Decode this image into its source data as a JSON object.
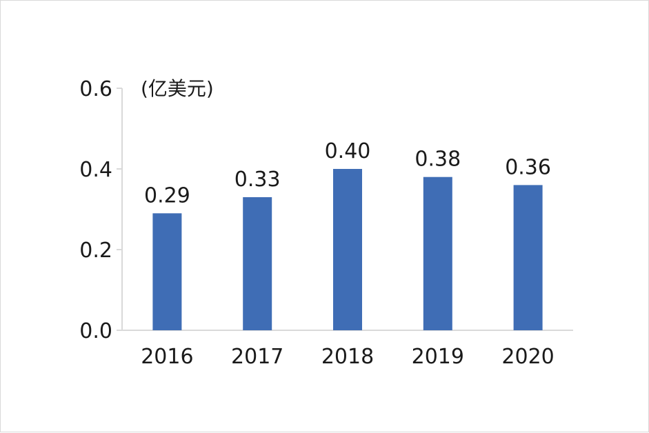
{
  "chart_data": {
    "type": "bar",
    "title": "",
    "xlabel": "",
    "ylabel": "",
    "unit_label": "(亿美元)",
    "categories": [
      "2016",
      "2017",
      "2018",
      "2019",
      "2020"
    ],
    "values": [
      0.29,
      0.33,
      0.4,
      0.38,
      0.36
    ],
    "value_labels": [
      "0.29",
      "0.33",
      "0.40",
      "0.38",
      "0.36"
    ],
    "yticks": [
      "0.0",
      "0.2",
      "0.4",
      "0.6"
    ],
    "ylim": [
      0,
      0.6
    ],
    "grid": false,
    "legend": "none",
    "bar_color": "#3f6db5",
    "axis_color": "#d9d9d9"
  }
}
